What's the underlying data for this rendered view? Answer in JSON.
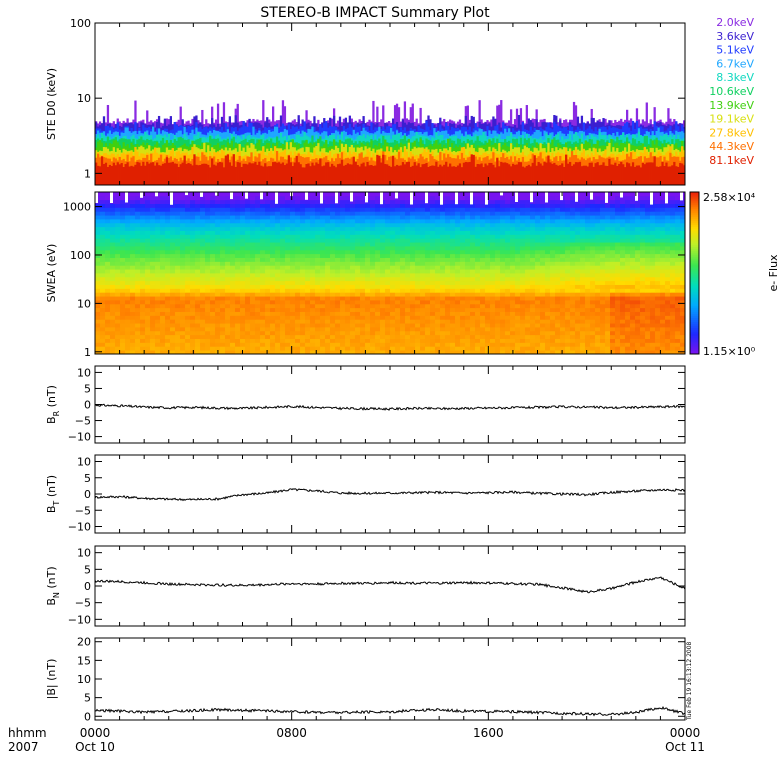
{
  "title": "STEREO-B IMPACT Summary Plot",
  "chart_data": [
    {
      "type": "line",
      "id": "ste",
      "ylabel": "STE D0 (keV)",
      "yscale": "log",
      "ylim": [
        0.7,
        100
      ],
      "yticks": [
        1,
        10,
        100
      ],
      "yticklabels": [
        "1",
        "10",
        "100"
      ],
      "series": [
        {
          "name": "2.0keV",
          "color": "#8a2be2",
          "level": 4.9,
          "peak": 9.5
        },
        {
          "name": "3.6keV",
          "color": "#3a1fd0",
          "level": 4.4,
          "peak": 6.0
        },
        {
          "name": "5.1keV",
          "color": "#1f3bff",
          "level": 3.9,
          "peak": 5.0
        },
        {
          "name": "6.7keV",
          "color": "#1fa7ff",
          "level": 3.4,
          "peak": 4.2
        },
        {
          "name": "8.3keV",
          "color": "#10d8c0",
          "level": 3.0,
          "peak": 3.6
        },
        {
          "name": "10.6keV",
          "color": "#10d060",
          "level": 2.65,
          "peak": 3.2
        },
        {
          "name": "13.9keV",
          "color": "#40d010",
          "level": 2.35,
          "peak": 2.9
        },
        {
          "name": "19.1keV",
          "color": "#d8e010",
          "level": 2.05,
          "peak": 2.6
        },
        {
          "name": "27.8keV",
          "color": "#ffc000",
          "level": 1.8,
          "peak": 2.3
        },
        {
          "name": "44.3keV",
          "color": "#ff7000",
          "level": 1.55,
          "peak": 2.0
        },
        {
          "name": "81.1keV",
          "color": "#e02000",
          "level": 1.3,
          "peak": 1.8
        }
      ]
    },
    {
      "type": "heatmap",
      "id": "swea",
      "ylabel": "SWEA (eV)",
      "yscale": "log",
      "ylim": [
        0.9,
        2000
      ],
      "yticks": [
        1,
        10,
        100,
        1000
      ],
      "yticklabels": [
        "1",
        "10",
        "100",
        "1000"
      ],
      "colorbar": {
        "label": "e- Flux",
        "max_label": "2.58×10⁴",
        "min_label": "1.15×10⁰",
        "max": 25800,
        "min": 1.15
      }
    },
    {
      "type": "line",
      "id": "br",
      "ylabel_main": "B",
      "ylabel_sub": "R",
      "ylabel_unit": " (nT)",
      "ylim": [
        -12,
        12
      ],
      "yticks": [
        -10,
        -5,
        0,
        5,
        10
      ],
      "yticklabels": [
        "−10",
        "−5",
        "0",
        "5",
        "10"
      ],
      "points": [
        [
          0,
          -0.2
        ],
        [
          1,
          -0.4
        ],
        [
          2,
          -0.8
        ],
        [
          3,
          -1.0
        ],
        [
          4,
          -0.9
        ],
        [
          5,
          -1.1
        ],
        [
          6,
          -1.2
        ],
        [
          7,
          -0.9
        ],
        [
          8,
          -0.6
        ],
        [
          9,
          -0.9
        ],
        [
          10,
          -1.2
        ],
        [
          11,
          -1.3
        ],
        [
          12,
          -1.4
        ],
        [
          13,
          -1.2
        ],
        [
          14,
          -1.3
        ],
        [
          15,
          -1.2
        ],
        [
          16,
          -1.1
        ],
        [
          17,
          -1.0
        ],
        [
          18,
          -0.9
        ],
        [
          19,
          -0.7
        ],
        [
          20,
          -0.8
        ],
        [
          21,
          -1.0
        ],
        [
          22,
          -0.9
        ],
        [
          23,
          -0.7
        ],
        [
          24,
          -0.6
        ]
      ]
    },
    {
      "type": "line",
      "id": "bt",
      "ylabel_main": "B",
      "ylabel_sub": "T",
      "ylabel_unit": " (nT)",
      "ylim": [
        -12,
        12
      ],
      "yticks": [
        -10,
        -5,
        0,
        5,
        10
      ],
      "yticklabels": [
        "−10",
        "−5",
        "0",
        "5",
        "10"
      ],
      "points": [
        [
          0,
          -1.0
        ],
        [
          1,
          -0.8
        ],
        [
          2,
          -1.3
        ],
        [
          3,
          -1.6
        ],
        [
          4,
          -1.7
        ],
        [
          5,
          -1.5
        ],
        [
          6,
          -0.2
        ],
        [
          7,
          0.3
        ],
        [
          8,
          1.4
        ],
        [
          9,
          1.0
        ],
        [
          10,
          0.3
        ],
        [
          11,
          0.2
        ],
        [
          12,
          0.3
        ],
        [
          13,
          0.4
        ],
        [
          14,
          0.5
        ],
        [
          15,
          0.3
        ],
        [
          16,
          0.4
        ],
        [
          17,
          0.6
        ],
        [
          18,
          0.2
        ],
        [
          19,
          0.0
        ],
        [
          20,
          -0.2
        ],
        [
          21,
          0.5
        ],
        [
          22,
          0.9
        ],
        [
          23,
          1.3
        ],
        [
          24,
          1.2
        ]
      ]
    },
    {
      "type": "line",
      "id": "bn",
      "ylabel_main": "B",
      "ylabel_sub": "N",
      "ylabel_unit": " (nT)",
      "ylim": [
        -12,
        12
      ],
      "yticks": [
        -10,
        -5,
        0,
        5,
        10
      ],
      "yticklabels": [
        "−10",
        "−5",
        "0",
        "5",
        "10"
      ],
      "points": [
        [
          0,
          1.5
        ],
        [
          1,
          1.3
        ],
        [
          2,
          1.0
        ],
        [
          3,
          0.6
        ],
        [
          4,
          0.4
        ],
        [
          5,
          0.3
        ],
        [
          6,
          0.2
        ],
        [
          7,
          0.4
        ],
        [
          8,
          0.7
        ],
        [
          9,
          0.6
        ],
        [
          10,
          0.8
        ],
        [
          11,
          0.8
        ],
        [
          12,
          1.0
        ],
        [
          13,
          0.9
        ],
        [
          14,
          0.8
        ],
        [
          15,
          1.0
        ],
        [
          16,
          0.9
        ],
        [
          17,
          0.7
        ],
        [
          18,
          0.5
        ],
        [
          19,
          -0.5
        ],
        [
          20,
          -1.8
        ],
        [
          21,
          -0.8
        ],
        [
          22,
          1.2
        ],
        [
          23,
          2.6
        ],
        [
          24,
          -0.8
        ]
      ]
    },
    {
      "type": "line",
      "id": "bmag",
      "ylabel_main": "|B|",
      "ylabel_sub": "",
      "ylabel_unit": " (nT)",
      "ylim": [
        -1,
        21
      ],
      "yticks": [
        0,
        5,
        10,
        15,
        20
      ],
      "yticklabels": [
        "0",
        "5",
        "10",
        "15",
        "20"
      ],
      "points": [
        [
          0,
          1.6
        ],
        [
          1,
          1.4
        ],
        [
          2,
          1.1
        ],
        [
          3,
          1.3
        ],
        [
          4,
          1.5
        ],
        [
          5,
          1.8
        ],
        [
          6,
          1.6
        ],
        [
          7,
          1.4
        ],
        [
          8,
          1.2
        ],
        [
          9,
          1.1
        ],
        [
          10,
          1.0
        ],
        [
          11,
          1.1
        ],
        [
          12,
          1.2
        ],
        [
          13,
          1.6
        ],
        [
          14,
          1.8
        ],
        [
          15,
          1.4
        ],
        [
          16,
          1.3
        ],
        [
          17,
          1.2
        ],
        [
          18,
          1.0
        ],
        [
          19,
          0.8
        ],
        [
          20,
          0.6
        ],
        [
          21,
          0.5
        ],
        [
          22,
          1.0
        ],
        [
          23,
          2.3
        ],
        [
          24,
          0.7
        ]
      ]
    }
  ],
  "x_axis": {
    "row_label_1": "hhmm",
    "row_label_2": "2007",
    "ticks": [
      {
        "hour": 0,
        "label": "0000",
        "date": "Oct 10"
      },
      {
        "hour": 8,
        "label": "0800",
        "date": ""
      },
      {
        "hour": 16,
        "label": "1600",
        "date": ""
      },
      {
        "hour": 24,
        "label": "0000",
        "date": "Oct 11"
      }
    ]
  },
  "timestamp": "Tue Feb 19 16:13:12 2008",
  "colors": {
    "frame": "#000000",
    "trace": "#000000"
  }
}
